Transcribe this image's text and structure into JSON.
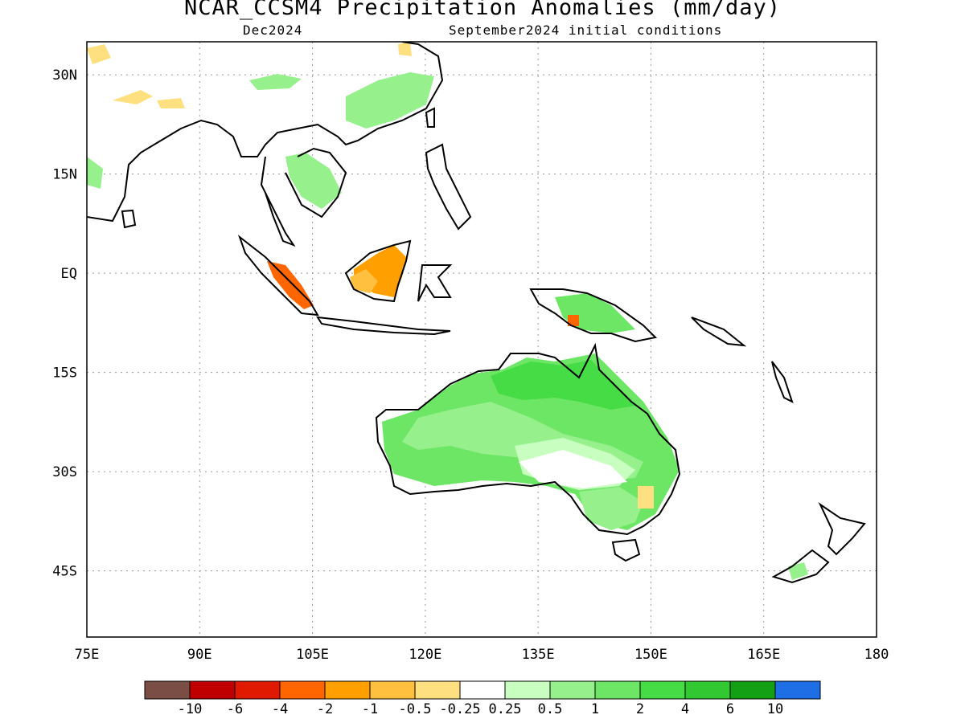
{
  "title": "NCAR_CCSM4 Precipitation Anomalies (mm/day)",
  "subtitle_left": "Dec2024",
  "subtitle_right": "September2024 initial conditions",
  "map": {
    "lon_range": [
      75,
      180
    ],
    "lat_range": [
      -55,
      35
    ],
    "lon_ticks": [
      "75E",
      "90E",
      "105E",
      "120E",
      "135E",
      "150E",
      "165E",
      "180"
    ],
    "lat_ticks": [
      "30N",
      "15N",
      "EQ",
      "15S",
      "30S",
      "45S"
    ],
    "grid": "dotted"
  },
  "colorbar": {
    "colors": [
      "#7b4e45",
      "#c00000",
      "#e01a00",
      "#ff6600",
      "#ffa000",
      "#ffc040",
      "#ffe080",
      "#ffffff",
      "#c8ffc0",
      "#96f08c",
      "#6ce664",
      "#46dc46",
      "#32c832",
      "#14a014",
      "#1e6ee6"
    ],
    "labels": [
      "-10",
      "-6",
      "-4",
      "-2",
      "-1",
      "-0.5",
      "-0.25",
      "0.25",
      "0.5",
      "1",
      "2",
      "4",
      "6",
      "10"
    ]
  }
}
